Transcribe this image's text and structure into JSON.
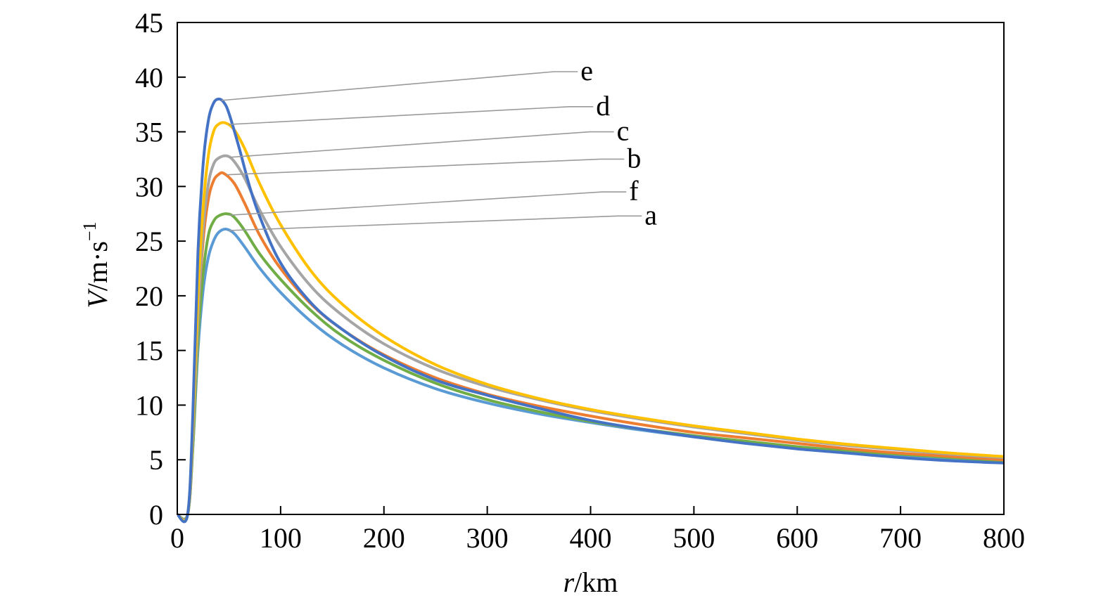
{
  "chart_data": {
    "type": "line",
    "xlabel_var": "r",
    "xlabel_unit": "/km",
    "ylabel_var": "V",
    "ylabel_unit": "/m·s",
    "ylabel_exp": "−1",
    "xlim": [
      0,
      800
    ],
    "ylim": [
      0,
      45
    ],
    "xticks": [
      "0",
      "100",
      "200",
      "300",
      "400",
      "500",
      "600",
      "700",
      "800"
    ],
    "yticks": [
      "0",
      "5",
      "10",
      "15",
      "20",
      "25",
      "30",
      "35",
      "40",
      "45"
    ],
    "grid": false,
    "series": [
      {
        "name": "a",
        "color": "#5b9bd5",
        "x": [
          0,
          10,
          15,
          20,
          25,
          30,
          35,
          40,
          47,
          55,
          65,
          80,
          100,
          130,
          160,
          200,
          250,
          300,
          350,
          400,
          450,
          500,
          550,
          600,
          650,
          700,
          750,
          800
        ],
        "y": [
          0,
          0,
          6,
          15,
          20.5,
          23.5,
          25,
          25.8,
          26.1,
          25.7,
          24.5,
          22.5,
          20.3,
          17.6,
          15.5,
          13.4,
          11.5,
          10.2,
          9.2,
          8.4,
          7.7,
          7.1,
          6.6,
          6.1,
          5.7,
          5.4,
          5.1,
          4.8
        ]
      },
      {
        "name": "b",
        "color": "#ed7d31",
        "x": [
          0,
          10,
          15,
          20,
          25,
          30,
          35,
          40,
          45,
          55,
          65,
          80,
          100,
          130,
          160,
          200,
          250,
          300,
          350,
          400,
          450,
          500,
          550,
          600,
          650,
          700,
          750,
          800
        ],
        "y": [
          0,
          0,
          7,
          18,
          25,
          28.8,
          30.5,
          31.1,
          31.2,
          30.3,
          28.5,
          25.5,
          22.5,
          19.2,
          16.9,
          14.6,
          12.5,
          11,
          9.9,
          9,
          8.2,
          7.5,
          7,
          6.5,
          6,
          5.6,
          5.3,
          5
        ]
      },
      {
        "name": "c",
        "color": "#a5a5a5",
        "x": [
          0,
          10,
          15,
          20,
          25,
          30,
          35,
          40,
          48,
          55,
          65,
          80,
          100,
          130,
          160,
          200,
          250,
          300,
          350,
          400,
          450,
          500,
          550,
          600,
          650,
          700,
          750,
          800
        ],
        "y": [
          0,
          0,
          7,
          18,
          26,
          30.2,
          32,
          32.6,
          32.8,
          32.3,
          30.8,
          27.8,
          24.5,
          20.8,
          18.2,
          15.6,
          13.3,
          11.7,
          10.5,
          9.5,
          8.7,
          8,
          7.4,
          6.8,
          6.3,
          5.9,
          5.5,
          5.2
        ]
      },
      {
        "name": "d",
        "color": "#ffc000",
        "x": [
          0,
          10,
          15,
          20,
          25,
          30,
          35,
          40,
          47,
          55,
          65,
          80,
          100,
          130,
          160,
          200,
          250,
          300,
          350,
          400,
          450,
          500,
          550,
          600,
          650,
          700,
          750,
          800
        ],
        "y": [
          0,
          0,
          8,
          20,
          28,
          32.8,
          35,
          35.7,
          35.8,
          35.2,
          33.5,
          30.2,
          26.5,
          22.2,
          19.2,
          16.3,
          13.7,
          11.9,
          10.6,
          9.6,
          8.8,
          8.1,
          7.5,
          6.9,
          6.4,
          6,
          5.6,
          5.3
        ]
      },
      {
        "name": "e",
        "color": "#4472c4",
        "x": [
          0,
          10,
          15,
          20,
          25,
          30,
          35,
          40,
          45,
          50,
          60,
          70,
          80,
          100,
          130,
          160,
          200,
          250,
          300,
          350,
          400,
          450,
          500,
          550,
          600,
          650,
          700,
          750,
          800
        ],
        "y": [
          0,
          0,
          9,
          24,
          32,
          36,
          37.6,
          38,
          37.7,
          36.7,
          33.5,
          30,
          27.2,
          23,
          19.3,
          16.9,
          14.5,
          12.3,
          10.9,
          9.7,
          8.6,
          7.8,
          7.1,
          6.5,
          6,
          5.6,
          5.2,
          4.9,
          4.7
        ]
      },
      {
        "name": "f",
        "color": "#70ad47",
        "x": [
          0,
          10,
          15,
          20,
          25,
          30,
          35,
          40,
          48,
          55,
          65,
          80,
          100,
          130,
          160,
          200,
          250,
          300,
          350,
          400,
          450,
          500,
          550,
          600,
          650,
          700,
          750,
          800
        ],
        "y": [
          0,
          0,
          6,
          16,
          22,
          25.5,
          26.8,
          27.3,
          27.5,
          27.2,
          26,
          23.8,
          21.5,
          18.6,
          16.3,
          14.1,
          12,
          10.5,
          9.4,
          8.5,
          7.8,
          7.2,
          6.7,
          6.2,
          5.8,
          5.5,
          5.2,
          4.9
        ]
      }
    ],
    "annotations": [
      {
        "label": "e",
        "series": "e",
        "peak": [
          40,
          38
        ],
        "text_pos": [
          393,
          40.5
        ]
      },
      {
        "label": "d",
        "series": "d",
        "peak": [
          47,
          35.8
        ],
        "text_pos": [
          408,
          37.3
        ]
      },
      {
        "label": "c",
        "series": "c",
        "peak": [
          48,
          32.8
        ],
        "text_pos": [
          428,
          35
        ]
      },
      {
        "label": "b",
        "series": "b",
        "peak": [
          45,
          31.2
        ],
        "text_pos": [
          438,
          32.5
        ]
      },
      {
        "label": "f",
        "series": "f",
        "peak": [
          48,
          27.5
        ],
        "text_pos": [
          440,
          29.5
        ]
      },
      {
        "label": "a",
        "series": "a",
        "peak": [
          47,
          26.1
        ],
        "text_pos": [
          455,
          27.3
        ]
      }
    ]
  }
}
